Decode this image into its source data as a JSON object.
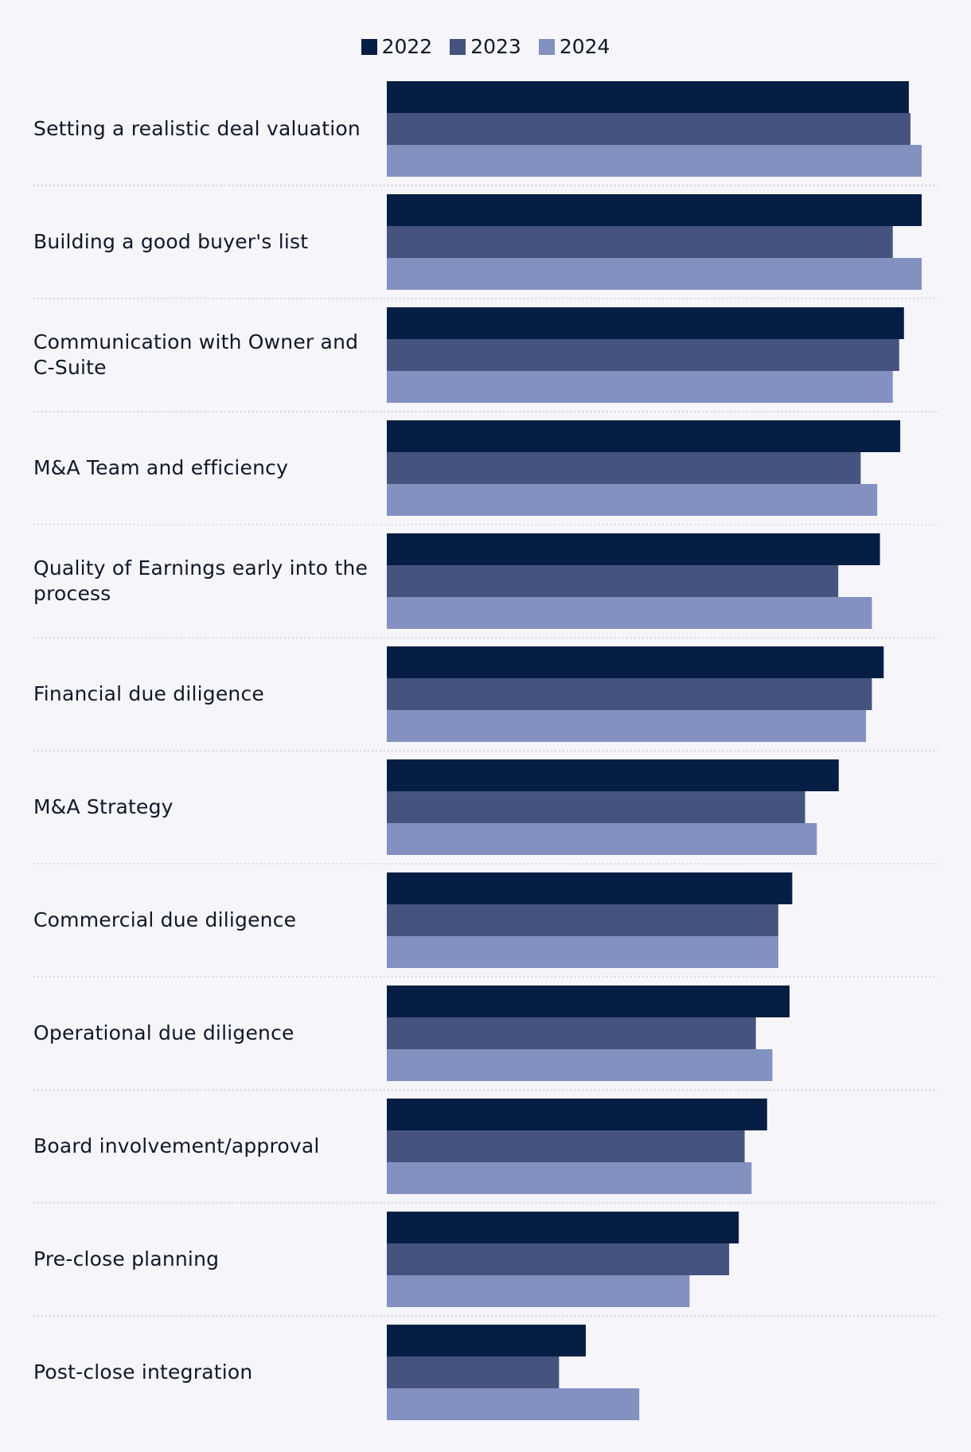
{
  "chart_data": {
    "type": "bar",
    "orientation": "horizontal",
    "title": "",
    "xlabel": "",
    "ylabel": "",
    "xlim": [
      0,
      100
    ],
    "grid": false,
    "legend_position": "top-center",
    "categories": [
      "Setting a realistic deal valuation",
      "Building a good buyer's list",
      "Communication with Owner and C-Suite",
      "M&A Team and efficiency",
      "Quality of Earnings early into the process",
      "Financial due diligence",
      "M&A Strategy",
      "Commercial due diligence",
      "Operational due diligence",
      "Board involvement/approval",
      "Pre-close planning",
      "Post-close integration"
    ],
    "series": [
      {
        "name": "2022",
        "color": "#061e43",
        "values": [
          97.6,
          100,
          96.7,
          96.0,
          92.2,
          92.9,
          84.5,
          75.8,
          75.3,
          71.1,
          65.8,
          37.2
        ]
      },
      {
        "name": "2023",
        "color": "#44547e",
        "values": [
          97.9,
          94.6,
          95.8,
          88.6,
          84.4,
          90.7,
          78.2,
          73.2,
          69.0,
          66.9,
          64.0,
          32.2
        ]
      },
      {
        "name": "2024",
        "color": "#8391c1",
        "values": [
          100,
          100,
          94.6,
          91.7,
          90.7,
          89.6,
          80.4,
          73.2,
          72.1,
          68.2,
          56.6,
          47.2
        ]
      }
    ]
  }
}
